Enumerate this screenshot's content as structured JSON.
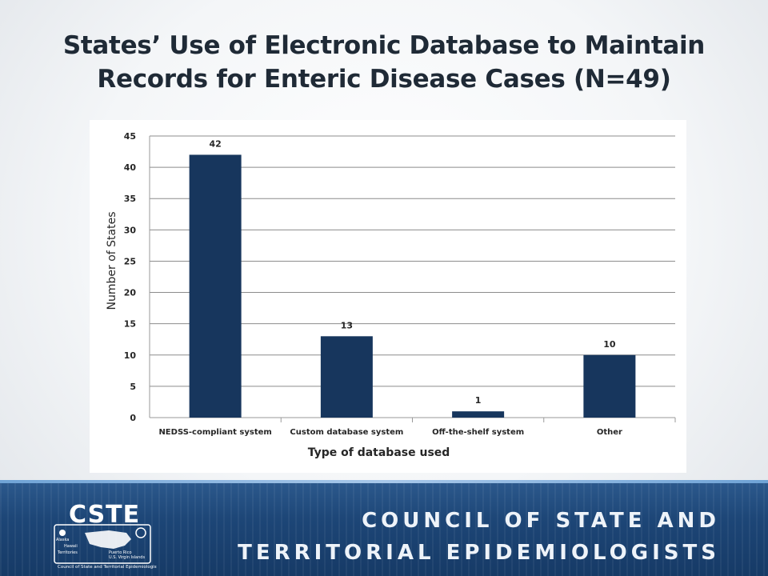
{
  "slide": {
    "title_line1": "States’ Use of Electronic Database to Maintain",
    "title_line2": "Records for Enteric Disease Cases (N=49)"
  },
  "footer": {
    "org_line1": "COUNCIL OF STATE AND",
    "org_line2": "TERRITORIAL EPIDEMIOLOGISTS",
    "logo_text": "CSTE",
    "logo_caption": "Council of State and Territorial Epidemiologists",
    "logo_labels": [
      "Alaska",
      "Hawaii",
      "Territories",
      "Puerto Rico",
      "U.S. Virgin Islands"
    ]
  },
  "chart_data": {
    "type": "bar",
    "categories": [
      "NEDSS-compliant system",
      "Custom database system",
      "Off-the-shelf system",
      "Other"
    ],
    "values": [
      42,
      13,
      1,
      10
    ],
    "xlabel": "Type of database used",
    "ylabel": "Number of States",
    "ylim": [
      0,
      45
    ],
    "yticks": [
      0,
      5,
      10,
      15,
      20,
      25,
      30,
      35,
      40,
      45
    ],
    "data_labels": true,
    "grid": true,
    "legend": "none",
    "bar_color": "#17365d"
  }
}
